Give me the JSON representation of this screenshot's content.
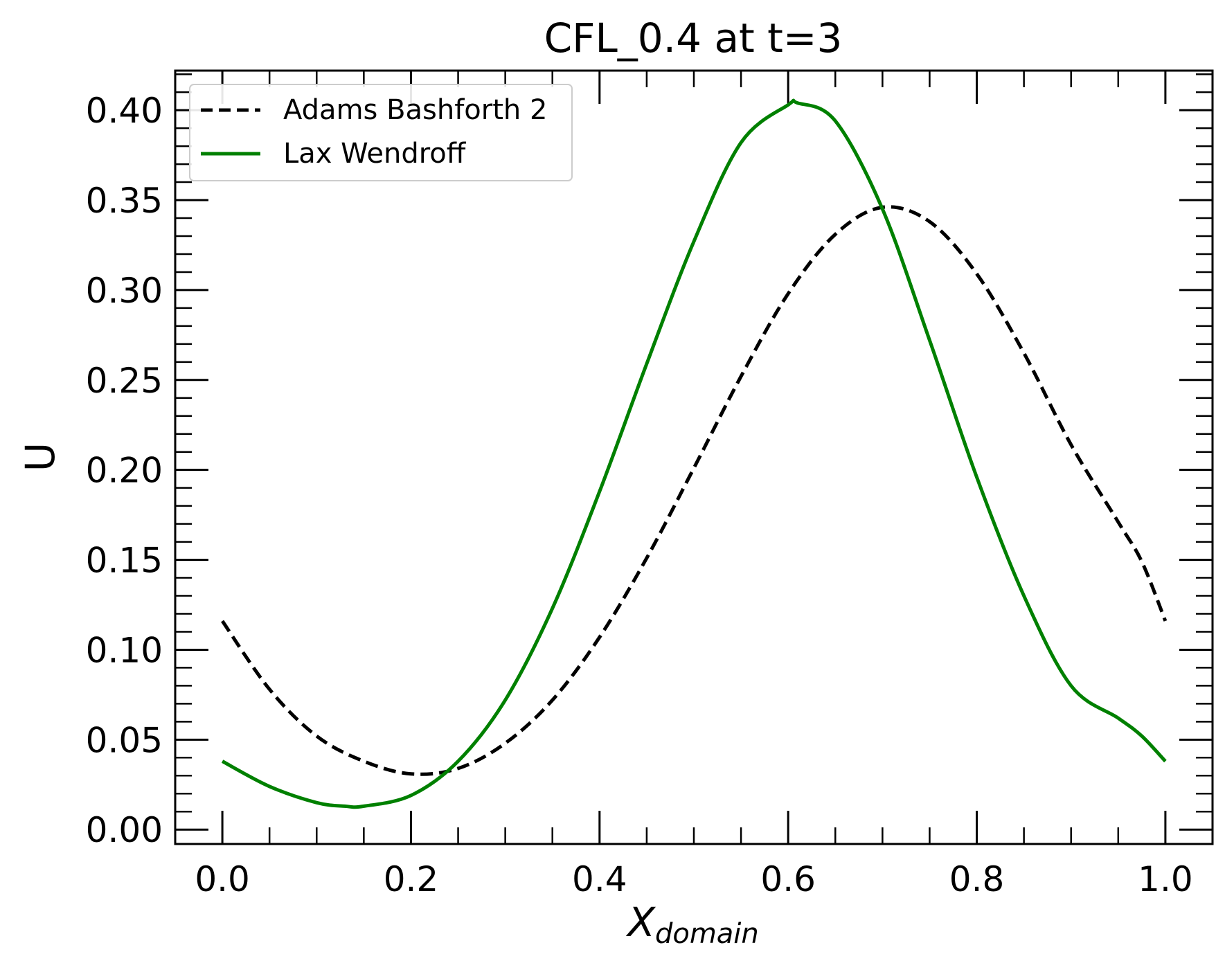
{
  "chart_data": {
    "type": "line",
    "title": "CFL_0.4 at t=3",
    "xlabel": {
      "main": "X",
      "sub": "domain"
    },
    "ylabel": "U",
    "xlim": [
      -0.05,
      1.05
    ],
    "ylim": [
      -0.008,
      0.422
    ],
    "x_ticks": [
      0.0,
      0.2,
      0.4,
      0.6,
      0.8,
      1.0
    ],
    "x_tick_labels": [
      "0.0",
      "0.2",
      "0.4",
      "0.6",
      "0.8",
      "1.0"
    ],
    "x_minor_step": 0.05,
    "y_ticks": [
      0.0,
      0.05,
      0.1,
      0.15,
      0.2,
      0.25,
      0.3,
      0.35,
      0.4
    ],
    "y_tick_labels": [
      "0.00",
      "0.05",
      "0.10",
      "0.15",
      "0.20",
      "0.25",
      "0.30",
      "0.35",
      "0.40"
    ],
    "y_minor_step": 0.01,
    "grid": false,
    "legend_position": "upper left",
    "series": [
      {
        "name": "Adams Bashforth 2",
        "color": "#000000",
        "dash": "dashed",
        "x": [
          0.0,
          0.05,
          0.1,
          0.15,
          0.2,
          0.25,
          0.3,
          0.35,
          0.4,
          0.45,
          0.5,
          0.55,
          0.6,
          0.65,
          0.7,
          0.75,
          0.8,
          0.85,
          0.9,
          0.95,
          0.975,
          1.0
        ],
        "y": [
          0.116,
          0.078,
          0.052,
          0.038,
          0.031,
          0.034,
          0.048,
          0.072,
          0.107,
          0.151,
          0.201,
          0.252,
          0.298,
          0.331,
          0.346,
          0.338,
          0.309,
          0.265,
          0.214,
          0.171,
          0.149,
          0.116
        ]
      },
      {
        "name": "Lax Wendroff",
        "color": "#008000",
        "dash": "solid",
        "x": [
          0.0,
          0.05,
          0.1,
          0.13,
          0.15,
          0.2,
          0.25,
          0.3,
          0.35,
          0.4,
          0.45,
          0.5,
          0.55,
          0.6,
          0.61,
          0.65,
          0.7,
          0.75,
          0.8,
          0.85,
          0.9,
          0.95,
          0.975,
          1.0
        ],
        "y": [
          0.038,
          0.024,
          0.015,
          0.013,
          0.013,
          0.019,
          0.038,
          0.072,
          0.123,
          0.188,
          0.259,
          0.327,
          0.382,
          0.403,
          0.404,
          0.394,
          0.345,
          0.272,
          0.196,
          0.13,
          0.08,
          0.062,
          0.052,
          0.038
        ]
      }
    ]
  }
}
